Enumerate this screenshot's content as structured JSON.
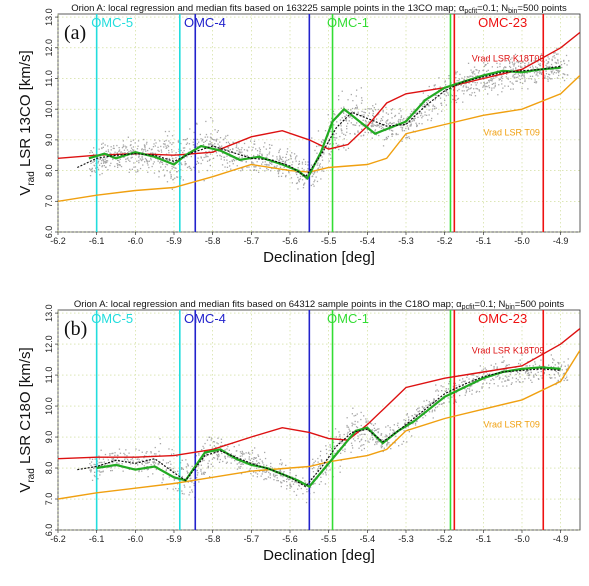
{
  "chart_data": [
    {
      "type": "line",
      "panel_label": "(a)",
      "title": "Orion A: local regression and median fits based on 163225 sample points in the 13CO map; α_pcfit=0.1; N_bin=500 points",
      "title_parts": {
        "pre": "Orion A: local regression and median fits based on 163225 sample points in the 13CO map; α",
        "sub1": "pcfit",
        "mid": "=0.1; N",
        "sub2": "bin",
        "post": "=500 points"
      },
      "xlabel": "Declination [deg]",
      "ylabel": {
        "main": "V",
        "sub": "rad",
        "rest": " LSR 13CO [km/s]"
      },
      "xlim": [
        -6.2,
        -4.85
      ],
      "ylim": [
        6.0,
        13.1
      ],
      "xticks": [
        "-6.2",
        "-6.1",
        "-6.0",
        "-5.9",
        "-5.8",
        "-5.7",
        "-5.6",
        "-5.5",
        "-5.4",
        "-5.3",
        "-5.2",
        "-5.1",
        "-5.0",
        "-4.9"
      ],
      "yticks": [
        "6.0",
        "7.0",
        "8.0",
        "9.0",
        "10.0",
        "11.0",
        "12.0",
        "13.0"
      ],
      "grid": true,
      "regions": [
        {
          "name": "OMC-5",
          "color": "#22dddd",
          "x": -6.06
        },
        {
          "name": "OMC-4",
          "color": "#2222cc",
          "x": -5.82
        },
        {
          "name": "OMC-1",
          "color": "#33dd33",
          "x": -5.45
        },
        {
          "name": "OMC-23",
          "color": "#ee1111",
          "x": -5.05
        }
      ],
      "vlines": [
        {
          "x": -6.1,
          "color": "#22dddd"
        },
        {
          "x": -5.885,
          "color": "#22dddd"
        },
        {
          "x": -5.845,
          "color": "#2222cc"
        },
        {
          "x": -5.55,
          "color": "#2222cc"
        },
        {
          "x": -5.49,
          "color": "#33dd33"
        },
        {
          "x": -5.185,
          "color": "#33dd33"
        },
        {
          "x": -5.175,
          "color": "#ee1111"
        },
        {
          "x": -4.945,
          "color": "#ee1111"
        }
      ],
      "series": [
        {
          "name": "Vrad LSR K18T09",
          "color": "#dd1111",
          "label_x": -5.13,
          "label_y": 11.55,
          "x": [
            -6.2,
            -6.1,
            -6.0,
            -5.9,
            -5.8,
            -5.7,
            -5.62,
            -5.55,
            -5.5,
            -5.45,
            -5.4,
            -5.35,
            -5.3,
            -5.2,
            -5.1,
            -5.0,
            -4.9,
            -4.85
          ],
          "y": [
            8.4,
            8.5,
            8.55,
            8.5,
            8.6,
            9.1,
            9.3,
            9.0,
            8.7,
            8.85,
            9.45,
            10.2,
            10.5,
            10.7,
            11.0,
            11.3,
            12.0,
            12.5
          ]
        },
        {
          "name": "Vrad LSR T09",
          "color": "#f0a010",
          "label_x": -5.1,
          "label_y": 9.15,
          "x": [
            -6.2,
            -6.1,
            -6.0,
            -5.9,
            -5.8,
            -5.7,
            -5.6,
            -5.55,
            -5.5,
            -5.4,
            -5.35,
            -5.3,
            -5.2,
            -5.1,
            -5.0,
            -4.9,
            -4.85
          ],
          "y": [
            7.0,
            7.2,
            7.35,
            7.45,
            7.8,
            8.2,
            8.0,
            7.95,
            8.1,
            8.2,
            8.4,
            9.2,
            9.5,
            9.8,
            10.0,
            10.5,
            11.1
          ]
        },
        {
          "name": "",
          "color": "#22aa22",
          "x": [
            -6.12,
            -6.08,
            -6.05,
            -6.0,
            -5.95,
            -5.9,
            -5.87,
            -5.83,
            -5.78,
            -5.73,
            -5.68,
            -5.62,
            -5.58,
            -5.555,
            -5.52,
            -5.49,
            -5.46,
            -5.42,
            -5.38,
            -5.34,
            -5.3,
            -5.25,
            -5.2,
            -5.15,
            -5.1,
            -5.05,
            -5.0,
            -4.95,
            -4.9
          ],
          "y": [
            8.4,
            8.55,
            8.4,
            8.6,
            8.45,
            8.2,
            8.5,
            8.8,
            8.65,
            8.35,
            8.45,
            8.2,
            8.0,
            7.75,
            8.6,
            9.6,
            10.0,
            9.6,
            9.2,
            9.4,
            9.6,
            10.3,
            10.7,
            10.9,
            11.1,
            11.25,
            11.2,
            11.3,
            11.35
          ]
        },
        {
          "name": "",
          "color": "#111111",
          "dashed": true,
          "x": [
            -6.15,
            -6.1,
            -6.05,
            -6.0,
            -5.95,
            -5.9,
            -5.85,
            -5.8,
            -5.75,
            -5.7,
            -5.65,
            -5.6,
            -5.56,
            -5.52,
            -5.48,
            -5.44,
            -5.4,
            -5.35,
            -5.3,
            -5.25,
            -5.2,
            -5.15,
            -5.1,
            -5.05,
            -5.0,
            -4.95,
            -4.9
          ],
          "y": [
            8.1,
            8.4,
            8.5,
            8.55,
            8.5,
            8.3,
            8.6,
            8.8,
            8.6,
            8.4,
            8.35,
            8.15,
            7.8,
            8.5,
            9.4,
            9.9,
            9.7,
            9.45,
            9.5,
            10.1,
            10.6,
            10.9,
            11.05,
            11.2,
            11.25,
            11.3,
            11.4
          ]
        }
      ]
    },
    {
      "type": "line",
      "panel_label": "(b)",
      "title": "Orion A: local regression and median fits based on 64312 sample points in the C18O map; α_pcfit=0.1; N_bin=500 points",
      "title_parts": {
        "pre": "Orion A: local regression and median fits based on 64312 sample points in the C18O map; α",
        "sub1": "pcfit",
        "mid": "=0.1; N",
        "sub2": "bin",
        "post": "=500 points"
      },
      "xlabel": "Declination [deg]",
      "ylabel": {
        "main": "V",
        "sub": "rad",
        "rest": " LSR C18O [km/s]"
      },
      "xlim": [
        -6.2,
        -4.85
      ],
      "ylim": [
        6.0,
        13.1
      ],
      "xticks": [
        "-6.2",
        "-6.1",
        "-6.0",
        "-5.9",
        "-5.8",
        "-5.7",
        "-5.6",
        "-5.5",
        "-5.4",
        "-5.3",
        "-5.2",
        "-5.1",
        "-5.0",
        "-4.9"
      ],
      "yticks": [
        "6.0",
        "7.0",
        "8.0",
        "9.0",
        "10.0",
        "11.0",
        "12.0",
        "13.0"
      ],
      "grid": true,
      "regions": [
        {
          "name": "OMC-5",
          "color": "#22dddd",
          "x": -6.06
        },
        {
          "name": "OMC-4",
          "color": "#2222cc",
          "x": -5.82
        },
        {
          "name": "OMC-1",
          "color": "#33dd33",
          "x": -5.45
        },
        {
          "name": "OMC-23",
          "color": "#ee1111",
          "x": -5.05
        }
      ],
      "vlines": [
        {
          "x": -6.1,
          "color": "#22dddd"
        },
        {
          "x": -5.885,
          "color": "#22dddd"
        },
        {
          "x": -5.845,
          "color": "#2222cc"
        },
        {
          "x": -5.55,
          "color": "#2222cc"
        },
        {
          "x": -5.49,
          "color": "#33dd33"
        },
        {
          "x": -5.185,
          "color": "#33dd33"
        },
        {
          "x": -5.175,
          "color": "#ee1111"
        },
        {
          "x": -4.945,
          "color": "#ee1111"
        }
      ],
      "series": [
        {
          "name": "Vrad LSR K18T09",
          "color": "#dd1111",
          "label_x": -5.13,
          "label_y": 11.7,
          "x": [
            -6.2,
            -6.1,
            -6.0,
            -5.9,
            -5.8,
            -5.7,
            -5.62,
            -5.55,
            -5.5,
            -5.45,
            -5.4,
            -5.35,
            -5.3,
            -5.2,
            -5.1,
            -5.0,
            -4.9,
            -4.85
          ],
          "y": [
            8.3,
            8.35,
            8.35,
            8.4,
            8.6,
            9.0,
            9.3,
            9.15,
            8.95,
            8.9,
            9.4,
            10.0,
            10.6,
            10.9,
            11.1,
            11.3,
            12.0,
            12.5
          ]
        },
        {
          "name": "Vrad LSR T09",
          "color": "#f0a010",
          "label_x": -5.1,
          "label_y": 9.3,
          "x": [
            -6.2,
            -6.1,
            -6.0,
            -5.9,
            -5.8,
            -5.7,
            -5.6,
            -5.55,
            -5.5,
            -5.4,
            -5.35,
            -5.3,
            -5.2,
            -5.1,
            -5.0,
            -4.9,
            -4.85
          ],
          "y": [
            7.0,
            7.2,
            7.35,
            7.5,
            7.7,
            7.9,
            8.0,
            8.05,
            8.2,
            8.4,
            8.6,
            9.2,
            9.6,
            9.9,
            10.2,
            10.8,
            11.8
          ]
        },
        {
          "name": "",
          "color": "#22aa22",
          "x": [
            -6.1,
            -6.05,
            -6.0,
            -5.95,
            -5.9,
            -5.87,
            -5.82,
            -5.78,
            -5.74,
            -5.7,
            -5.66,
            -5.62,
            -5.58,
            -5.55,
            -5.51,
            -5.47,
            -5.43,
            -5.4,
            -5.36,
            -5.32,
            -5.28,
            -5.24,
            -5.2,
            -5.15,
            -5.1,
            -5.05,
            -5.0,
            -4.95,
            -4.9
          ],
          "y": [
            8.0,
            8.1,
            7.95,
            8.05,
            7.7,
            7.6,
            8.5,
            8.6,
            8.3,
            8.1,
            8.0,
            7.8,
            7.6,
            7.4,
            8.0,
            8.6,
            9.2,
            9.3,
            8.8,
            9.2,
            9.5,
            9.9,
            10.3,
            10.6,
            10.9,
            11.1,
            11.2,
            11.25,
            11.2
          ]
        },
        {
          "name": "",
          "color": "#111111",
          "dashed": true,
          "x": [
            -6.15,
            -6.1,
            -6.05,
            -6.0,
            -5.95,
            -5.9,
            -5.87,
            -5.82,
            -5.78,
            -5.74,
            -5.7,
            -5.65,
            -5.6,
            -5.56,
            -5.52,
            -5.48,
            -5.44,
            -5.4,
            -5.36,
            -5.32,
            -5.28,
            -5.24,
            -5.2,
            -5.15,
            -5.1,
            -5.05,
            -5.0,
            -4.95,
            -4.9
          ],
          "y": [
            7.95,
            8.05,
            8.25,
            8.15,
            8.3,
            7.85,
            7.6,
            8.4,
            8.55,
            8.35,
            8.15,
            7.95,
            7.7,
            7.4,
            8.0,
            8.7,
            9.15,
            9.25,
            8.85,
            9.2,
            9.6,
            10.0,
            10.4,
            10.7,
            10.95,
            11.1,
            11.15,
            11.2,
            11.15
          ]
        }
      ]
    }
  ]
}
